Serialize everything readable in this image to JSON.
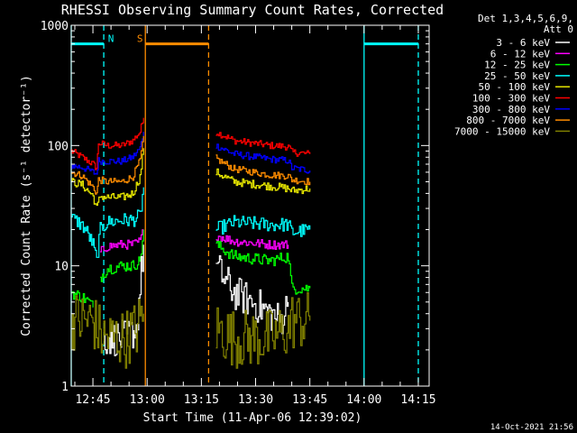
{
  "chart_data": {
    "type": "line",
    "title": "RHESSI Observing Summary Count Rates, Corrected",
    "xlabel": "Start Time (11-Apr-06 12:39:02)",
    "ylabel": "Corrected Count Rate (s⁻¹ detector⁻¹)",
    "yscale": "log",
    "ylim": [
      1,
      1000
    ],
    "xlim_minutes_after_1239": [
      0,
      99
    ],
    "x_ticks": [
      {
        "label": "12:45",
        "min": 6
      },
      {
        "label": "13:00",
        "min": 21
      },
      {
        "label": "13:15",
        "min": 36
      },
      {
        "label": "13:30",
        "min": 51
      },
      {
        "label": "13:45",
        "min": 66
      },
      {
        "label": "14:00",
        "min": 81
      },
      {
        "label": "14:15",
        "min": 96
      }
    ],
    "y_ticks": [
      {
        "label": "1",
        "value": 1
      },
      {
        "label": "10",
        "value": 10
      },
      {
        "label": "100",
        "value": 100
      },
      {
        "label": "1000",
        "value": 1000
      }
    ],
    "legend": {
      "placement": "top-right",
      "header": [
        "Det 1,3,4,5,6,9,",
        "Att 0"
      ],
      "entries": [
        {
          "label": "3 - 6 keV",
          "color": "#ffffff"
        },
        {
          "label": "6 - 12 keV",
          "color": "#ff00ff"
        },
        {
          "label": "12 - 25 keV",
          "color": "#00ff00"
        },
        {
          "label": "25 - 50 keV",
          "color": "#00ffff"
        },
        {
          "label": "50 - 100 keV",
          "color": "#e6e600"
        },
        {
          "label": "100 - 300 keV",
          "color": "#ff0000"
        },
        {
          "label": "300 - 800 keV",
          "color": "#0000ff"
        },
        {
          "label": "800 - 7000 keV",
          "color": "#ff8c00"
        },
        {
          "label": "7000 - 15000 keV",
          "color": "#808000"
        }
      ]
    },
    "flags": [
      {
        "label": "N",
        "color": "#00ffff",
        "level": 700,
        "min_start": 0,
        "min_end": 9
      },
      {
        "label": "S",
        "color": "#ff8c00",
        "level": 700,
        "min_start": 20.5,
        "min_end": 38
      },
      {
        "label": "",
        "color": "#00ffff",
        "level": 700,
        "min_start": 81,
        "min_end": 96
      }
    ],
    "markers": [
      {
        "min": 0,
        "color": "#00ffff",
        "style": "solid"
      },
      {
        "min": 9,
        "color": "#00ffff",
        "style": "dashed"
      },
      {
        "min": 20.5,
        "color": "#ff8c00",
        "style": "solid"
      },
      {
        "min": 38,
        "color": "#ff8c00",
        "style": "dashed"
      },
      {
        "min": 81,
        "color": "#00ffff",
        "style": "solid"
      },
      {
        "min": 96,
        "color": "#00ffff",
        "style": "dashed"
      }
    ],
    "series": [
      {
        "label": "100 - 300 keV",
        "color": "#ff0000",
        "noise": 0.03,
        "segments": [
          [
            [
              0,
              90
            ],
            [
              3,
              80
            ],
            [
              6,
              70
            ],
            [
              7,
              65
            ],
            [
              7.5,
              105
            ],
            [
              10,
              100
            ],
            [
              14,
              100
            ],
            [
              17,
              110
            ],
            [
              19,
              130
            ],
            [
              20,
              170
            ]
          ],
          [
            [
              40,
              130
            ],
            [
              45,
              110
            ],
            [
              55,
              100
            ],
            [
              60,
              98
            ],
            [
              61,
              88
            ],
            [
              66,
              85
            ]
          ]
        ]
      },
      {
        "label": "300 - 800 keV",
        "color": "#0000ff",
        "noise": 0.03,
        "segments": [
          [
            [
              0,
              68
            ],
            [
              3,
              66
            ],
            [
              7,
              58
            ],
            [
              7.5,
              75
            ],
            [
              10,
              74
            ],
            [
              14,
              74
            ],
            [
              17,
              80
            ],
            [
              19,
              95
            ],
            [
              20,
              130
            ]
          ],
          [
            [
              40,
              100
            ],
            [
              45,
              85
            ],
            [
              55,
              77
            ],
            [
              60,
              75
            ],
            [
              61,
              65
            ],
            [
              66,
              62
            ]
          ]
        ]
      },
      {
        "label": "800 - 7000 keV",
        "color": "#ff8c00",
        "noise": 0.03,
        "segments": [
          [
            [
              0,
              60
            ],
            [
              3,
              56
            ],
            [
              6,
              45
            ],
            [
              7,
              40
            ],
            [
              7.5,
              52
            ],
            [
              10,
              50
            ],
            [
              14,
              50
            ],
            [
              17,
              55
            ],
            [
              19,
              75
            ],
            [
              20,
              120
            ]
          ],
          [
            [
              40,
              78
            ],
            [
              45,
              64
            ],
            [
              55,
              57
            ],
            [
              60,
              56
            ],
            [
              61,
              52
            ],
            [
              66,
              50
            ]
          ]
        ]
      },
      {
        "label": "50 - 100 keV",
        "color": "#e6e600",
        "noise": 0.035,
        "segments": [
          [
            [
              0,
              50
            ],
            [
              3,
              47
            ],
            [
              6,
              38
            ],
            [
              7,
              30
            ],
            [
              8,
              38
            ],
            [
              10,
              37
            ],
            [
              14,
              37
            ],
            [
              17,
              40
            ],
            [
              19,
              55
            ],
            [
              20,
              95
            ]
          ],
          [
            [
              40,
              60
            ],
            [
              45,
              50
            ],
            [
              55,
              46
            ],
            [
              60,
              44
            ],
            [
              61,
              42
            ],
            [
              66,
              44
            ]
          ]
        ]
      },
      {
        "label": "25 - 50 keV",
        "color": "#00ffff",
        "noise": 0.06,
        "segments": [
          [
            [
              0,
              25
            ],
            [
              2,
              23
            ],
            [
              4,
              20
            ],
            [
              6,
              15
            ],
            [
              7,
              11
            ],
            [
              8,
              20
            ],
            [
              10,
              23
            ],
            [
              14,
              24
            ],
            [
              17,
              24
            ],
            [
              19,
              26
            ],
            [
              20,
              45
            ]
          ],
          [
            [
              40,
              20
            ],
            [
              45,
              23
            ],
            [
              55,
              22
            ],
            [
              60,
              22
            ],
            [
              61,
              19
            ],
            [
              66,
              20
            ]
          ]
        ]
      },
      {
        "label": "6 - 12 keV",
        "color": "#ff00ff",
        "noise": 0.04,
        "segments": [
          [
            [
              8,
              13
            ],
            [
              10,
              14.5
            ],
            [
              14,
              15
            ],
            [
              17,
              15
            ],
            [
              19,
              16
            ],
            [
              20,
              20
            ]
          ],
          [
            [
              40,
              18
            ],
            [
              45,
              16
            ],
            [
              55,
              15
            ],
            [
              60,
              15
            ]
          ]
        ]
      },
      {
        "label": "12 - 25 keV",
        "color": "#00ff00",
        "noise": 0.05,
        "segments": [
          [
            [
              0,
              6
            ],
            [
              3,
              5.5
            ],
            [
              5,
              5
            ],
            [
              6,
              4.5
            ]
          ],
          [
            [
              8,
              8
            ],
            [
              10,
              9.5
            ],
            [
              14,
              10
            ],
            [
              17,
              10
            ],
            [
              19,
              11
            ],
            [
              20,
              20
            ]
          ],
          [
            [
              40,
              15
            ],
            [
              45,
              12
            ],
            [
              55,
              11
            ],
            [
              60,
              12
            ],
            [
              61,
              6.5
            ],
            [
              66,
              6.5
            ]
          ]
        ]
      },
      {
        "label": "3 - 6 keV",
        "color": "#ffffff",
        "noise": 0.15,
        "segments": [
          [
            [
              9,
              2.5
            ],
            [
              12,
              2.5
            ],
            [
              15,
              2.5
            ],
            [
              18,
              3
            ],
            [
              20,
              15
            ]
          ],
          [
            [
              40,
              10
            ],
            [
              42,
              8
            ],
            [
              45,
              6
            ],
            [
              50,
              5
            ],
            [
              55,
              4
            ],
            [
              58,
              3.5
            ],
            [
              60,
              5
            ]
          ]
        ]
      },
      {
        "label": "7000 - 15000 keV",
        "color": "#808000",
        "noise": 0.25,
        "segments": [
          [
            [
              0,
              3.5
            ],
            [
              3,
              3.5
            ],
            [
              6,
              3.5
            ],
            [
              7,
              3
            ],
            [
              9,
              2.5
            ],
            [
              12,
              2.5
            ],
            [
              15,
              2.5
            ],
            [
              18,
              3
            ],
            [
              20,
              4
            ]
          ],
          [
            [
              40,
              3
            ],
            [
              45,
              2.5
            ],
            [
              55,
              2.5
            ],
            [
              60,
              3
            ],
            [
              61,
              3.5
            ],
            [
              66,
              3.5
            ]
          ]
        ]
      }
    ]
  },
  "footer_timestamp": "14-Oct-2021 21:56"
}
